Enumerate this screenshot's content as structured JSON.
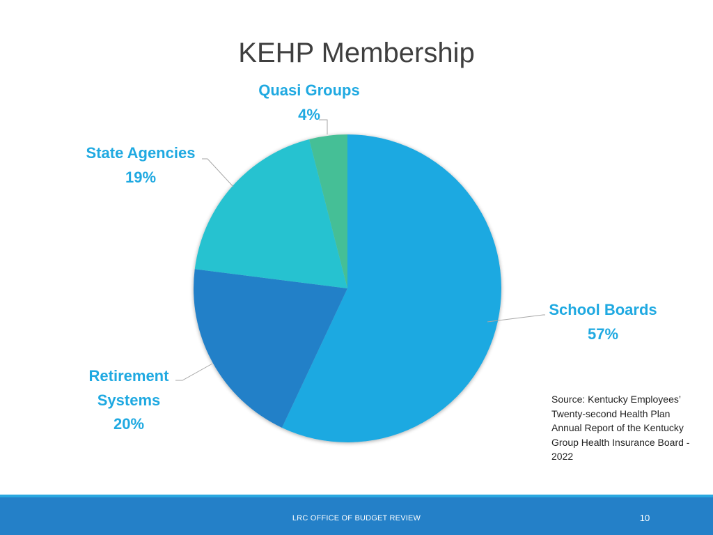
{
  "slide": {
    "source_text": "Source:  Kentucky Employees’ Twenty-second Health Plan Annual Report of the Kentucky Group Health Insurance Board - 2022",
    "footer_text": "LRC OFFICE OF BUDGET REVIEW",
    "page_number": "10"
  },
  "chart_data": {
    "type": "pie",
    "title": "KEHP Membership",
    "slices": [
      {
        "label": "School Boards",
        "value": 57,
        "display": "57%",
        "color": "#1fa9e1"
      },
      {
        "label": "Retirement Systems",
        "value": 20,
        "display": "20%",
        "color": "#2480c8"
      },
      {
        "label": "State Agencies",
        "value": 19,
        "display": "19%",
        "color": "#27c2d0"
      },
      {
        "label": "Quasi Groups",
        "value": 4,
        "display": "4%",
        "color": "#45bf96"
      }
    ],
    "label_color": "#1fa9e1"
  }
}
